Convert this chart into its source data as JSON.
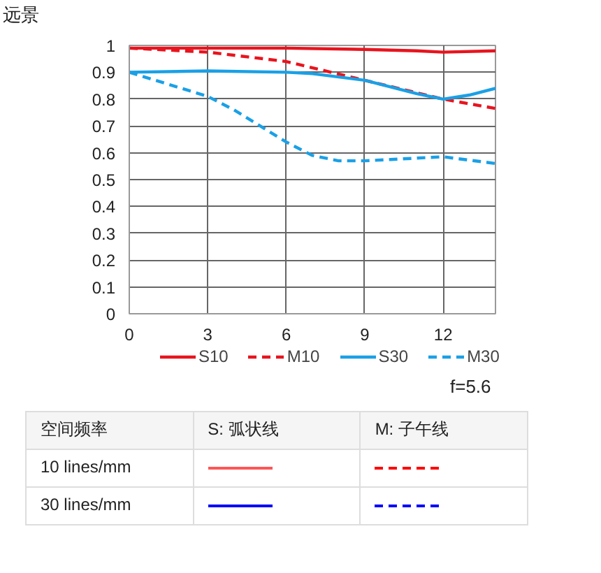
{
  "chart_data": {
    "type": "line",
    "title": "远景",
    "xlim": [
      0,
      14
    ],
    "ylim": [
      0,
      1
    ],
    "xticks": [
      0,
      3,
      6,
      9,
      12
    ],
    "yticks": [
      0,
      0.1,
      0.2,
      0.3,
      0.4,
      0.5,
      0.6,
      0.7,
      0.8,
      0.9,
      1
    ],
    "grid": true,
    "legend": "bottom",
    "marker": "none",
    "series": [
      {
        "name": "S10",
        "color": "#e8141e",
        "line_style": "solid",
        "x": [
          0,
          3,
          6,
          9,
          11,
          12,
          14
        ],
        "values": [
          0.99,
          0.99,
          0.99,
          0.985,
          0.98,
          0.975,
          0.98
        ]
      },
      {
        "name": "M10",
        "color": "#e8141e",
        "line_style": "dashed",
        "x": [
          0,
          3,
          6,
          9,
          12,
          14
        ],
        "values": [
          0.99,
          0.975,
          0.94,
          0.87,
          0.8,
          0.765
        ]
      },
      {
        "name": "S30",
        "color": "#1aa0e6",
        "line_style": "solid",
        "x": [
          0,
          3,
          6,
          7,
          9,
          11,
          12,
          13,
          14
        ],
        "values": [
          0.9,
          0.905,
          0.9,
          0.895,
          0.87,
          0.82,
          0.8,
          0.815,
          0.84
        ]
      },
      {
        "name": "M30",
        "color": "#1aa0e6",
        "line_style": "dashed",
        "x": [
          0,
          3,
          4,
          5,
          6,
          7,
          8,
          9,
          10,
          12,
          14
        ],
        "values": [
          0.9,
          0.81,
          0.76,
          0.7,
          0.64,
          0.59,
          0.57,
          0.57,
          0.575,
          0.585,
          0.56
        ]
      }
    ],
    "annotations": [
      "f=5.6",
      "空间频率",
      "S: 弧状线",
      "M: 子午线",
      "10 lines/mm",
      "30 lines/mm"
    ]
  }
}
